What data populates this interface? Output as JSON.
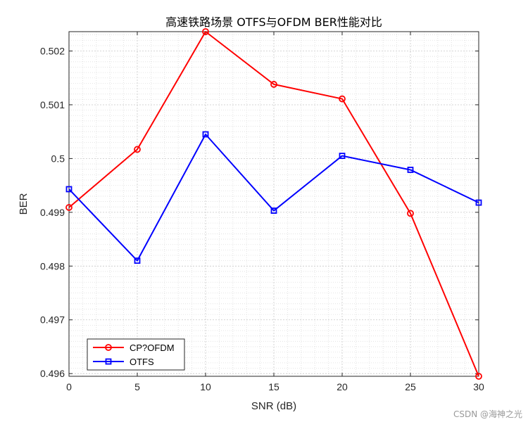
{
  "watermark": "CSDN @海神之光",
  "chart_data": {
    "type": "line",
    "title": "高速铁路场景 OTFS与OFDM BER性能对比",
    "xlabel": "SNR (dB)",
    "ylabel": "BER",
    "x": [
      0,
      5,
      10,
      15,
      20,
      25,
      30
    ],
    "xlim": [
      0,
      30
    ],
    "ylim": [
      0.49595,
      0.50236
    ],
    "xticks": [
      0,
      5,
      10,
      15,
      20,
      25,
      30
    ],
    "xtick_labels": [
      "0",
      "5",
      "10",
      "15",
      "20",
      "25",
      "30"
    ],
    "yticks": [
      0.496,
      0.497,
      0.498,
      0.499,
      0.5,
      0.501,
      0.502
    ],
    "ytick_labels": [
      "0.496",
      "0.497",
      "0.498",
      "0.499",
      "0.5",
      "0.501",
      "0.502"
    ],
    "grid": true,
    "minor_grid": true,
    "legend_position": "bottom-left",
    "series": [
      {
        "name": "CP?OFDM",
        "color": "#ff0000",
        "marker": "circle",
        "values": [
          0.49909,
          0.50017,
          0.50236,
          0.50138,
          0.50111,
          0.49898,
          0.49595
        ]
      },
      {
        "name": "OTFS",
        "color": "#0000ff",
        "marker": "square",
        "values": [
          0.49943,
          0.4981,
          0.50045,
          0.49903,
          0.50005,
          0.49979,
          0.49918
        ]
      }
    ]
  }
}
